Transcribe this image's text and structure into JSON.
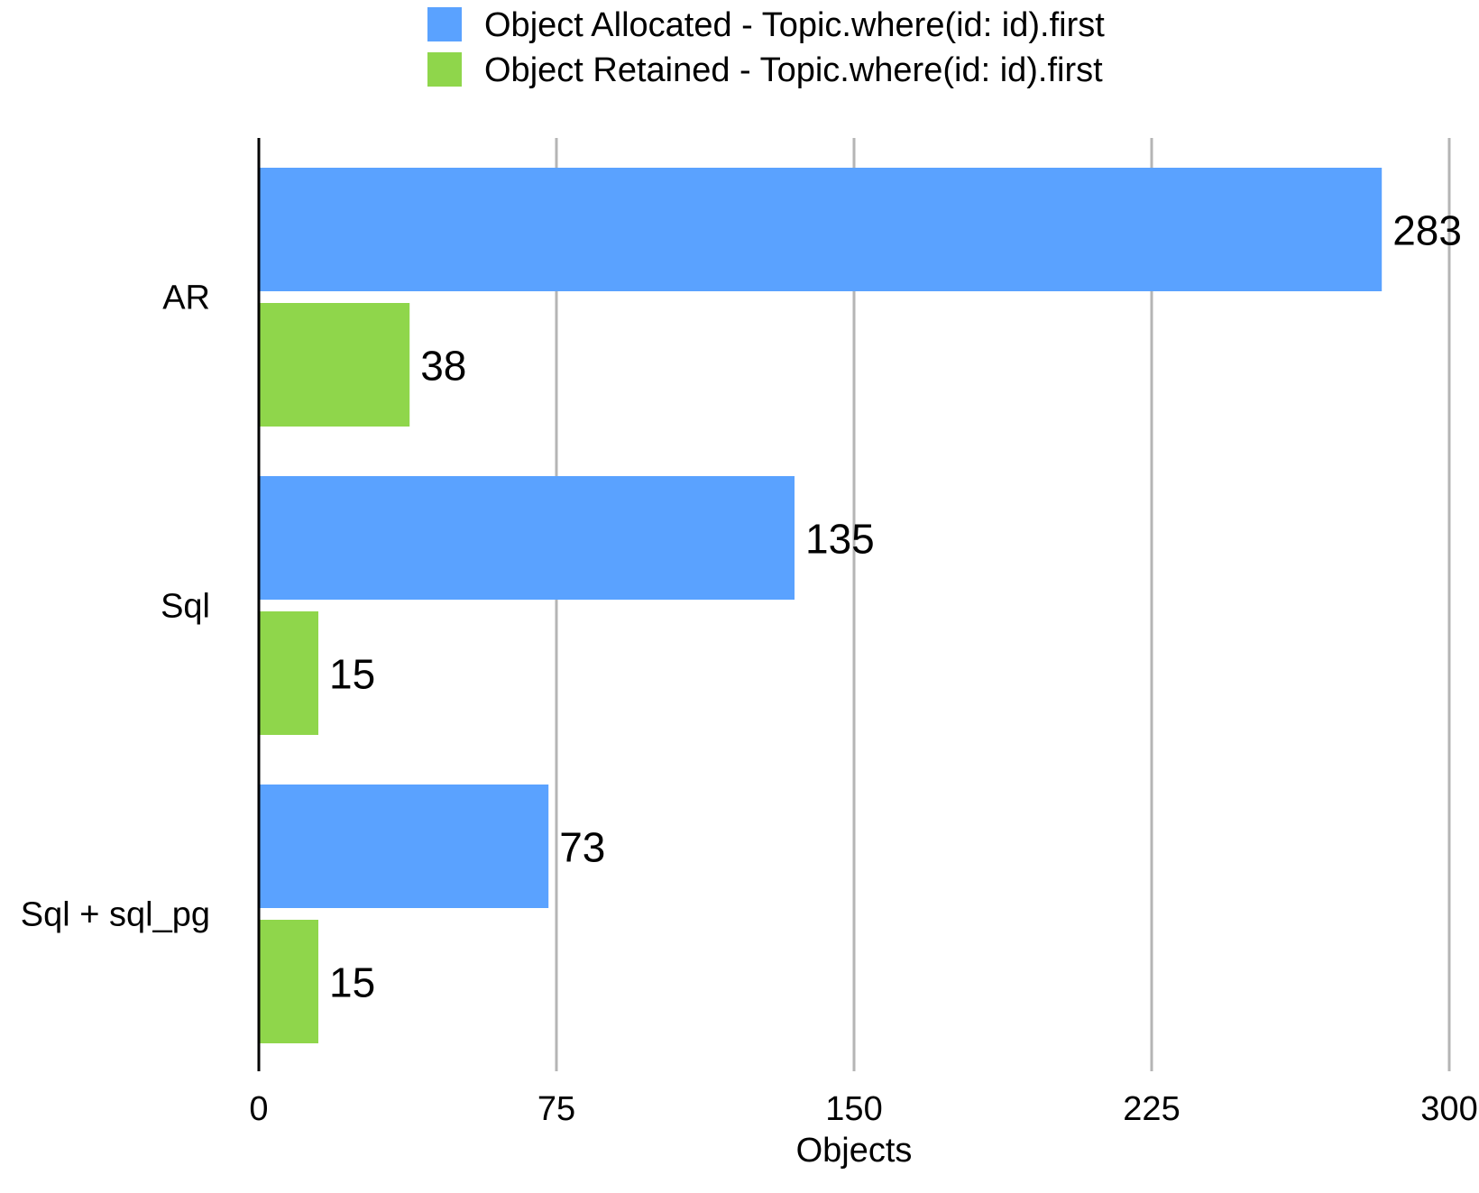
{
  "chart_data": {
    "type": "bar",
    "orientation": "horizontal",
    "categories": [
      "AR",
      "Sql",
      "Sql + sql_pg"
    ],
    "series": [
      {
        "name": "Object Allocated - Topic.where(id: id).first",
        "values": [
          283,
          135,
          73
        ],
        "color": "#5aa2ff"
      },
      {
        "name": "Object Retained - Topic.where(id: id).first",
        "values": [
          38,
          15,
          15
        ],
        "color": "#8fd64b"
      }
    ],
    "xlabel": "Objects",
    "ylabel": "",
    "xlim": [
      0,
      300
    ],
    "xticks": [
      0,
      75,
      150,
      225,
      300
    ],
    "grid": true,
    "legend": "top-center",
    "data_labels": true
  }
}
